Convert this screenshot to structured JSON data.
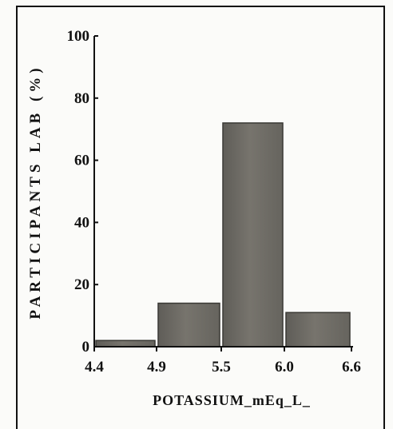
{
  "chart_data": {
    "type": "bar",
    "title": "",
    "xlabel": "POTASSIUM_mEq_L_",
    "ylabel": "PARTICIPANTS LAB (%)",
    "ylim": [
      0,
      100
    ],
    "yticks": [
      "0",
      "20",
      "40",
      "60",
      "80",
      "100"
    ],
    "xticks": [
      "4.4",
      "4.9",
      "5.5",
      "6.0",
      "6.6"
    ],
    "bins": [
      {
        "from": 4.4,
        "to": 4.9,
        "value": 2
      },
      {
        "from": 4.9,
        "to": 5.5,
        "value": 14
      },
      {
        "from": 5.5,
        "to": 6.0,
        "value": 72
      },
      {
        "from": 6.0,
        "to": 6.6,
        "value": 11
      }
    ],
    "grid": false,
    "bar_color": "#6f6d67"
  }
}
